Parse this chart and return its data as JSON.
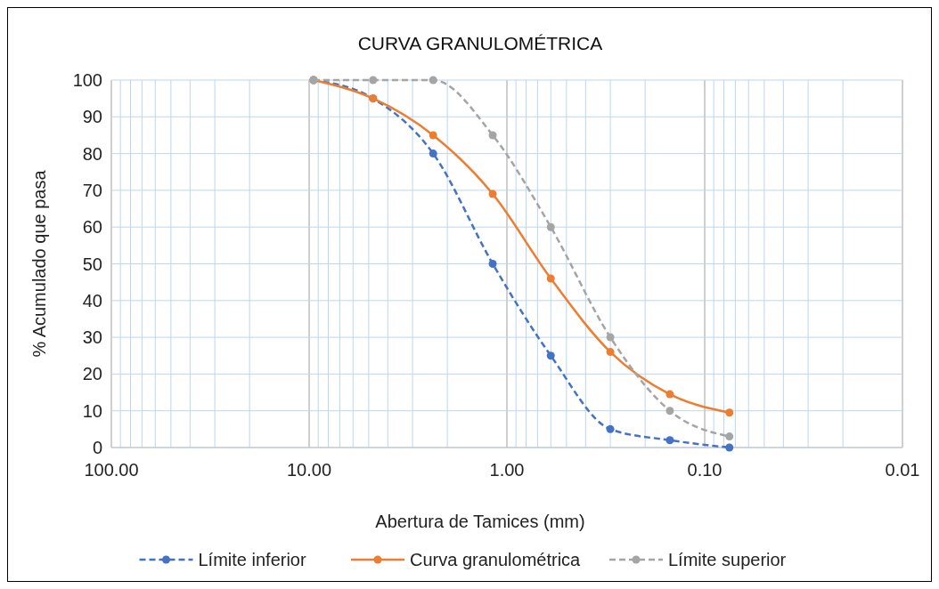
{
  "chart_data": {
    "type": "line",
    "title": "CURVA GRANULOMÉTRICA",
    "xlabel": "Abertura de Tamices (mm)",
    "ylabel": "% Acumulado que pasa",
    "log": "x",
    "xlim": [
      100,
      0.01
    ],
    "ylim": [
      0,
      100
    ],
    "xticks": [
      {
        "value": 100,
        "label": "100.00"
      },
      {
        "value": 90,
        "label": null
      },
      {
        "value": 80,
        "label": null
      },
      {
        "value": 70,
        "label": null
      },
      {
        "value": 60,
        "label": null
      },
      {
        "value": 50,
        "label": null
      },
      {
        "value": 40,
        "label": null
      },
      {
        "value": 30,
        "label": null
      },
      {
        "value": 20,
        "label": null
      },
      {
        "value": 10,
        "label": "10.00"
      },
      {
        "value": 9,
        "label": null
      },
      {
        "value": 8,
        "label": null
      },
      {
        "value": 7,
        "label": null
      },
      {
        "value": 6,
        "label": null
      },
      {
        "value": 5,
        "label": null
      },
      {
        "value": 4,
        "label": null
      },
      {
        "value": 3,
        "label": null
      },
      {
        "value": 2,
        "label": null
      },
      {
        "value": 1,
        "label": "1.00"
      },
      {
        "value": 0.9,
        "label": null
      },
      {
        "value": 0.8,
        "label": null
      },
      {
        "value": 0.7,
        "label": null
      },
      {
        "value": 0.6,
        "label": null
      },
      {
        "value": 0.5,
        "label": null
      },
      {
        "value": 0.4,
        "label": null
      },
      {
        "value": 0.3,
        "label": null
      },
      {
        "value": 0.2,
        "label": null
      },
      {
        "value": 0.1,
        "label": "0.10"
      },
      {
        "value": 0.09,
        "label": null
      },
      {
        "value": 0.08,
        "label": null
      },
      {
        "value": 0.07,
        "label": null
      },
      {
        "value": 0.06,
        "label": null
      },
      {
        "value": 0.05,
        "label": null
      },
      {
        "value": 0.04,
        "label": null
      },
      {
        "value": 0.03,
        "label": null
      },
      {
        "value": 0.02,
        "label": null
      },
      {
        "value": 0.01,
        "label": "0.01"
      }
    ],
    "yticks": [
      0,
      10,
      20,
      30,
      40,
      50,
      60,
      70,
      80,
      90,
      100
    ],
    "grid": true,
    "legend": "bottom",
    "marker": "circle",
    "x": [
      9.5,
      4.75,
      2.36,
      1.18,
      0.6,
      0.3,
      0.15,
      0.075
    ],
    "series": [
      {
        "name": "Límite inferior",
        "color": "#4472c4",
        "line_style": "dashed",
        "values": [
          100,
          95,
          80,
          50,
          25,
          5,
          2,
          0
        ]
      },
      {
        "name": "Curva granulométrica",
        "color": "#ed7d31",
        "line_style": "solid",
        "values": [
          100,
          95,
          85,
          69,
          46,
          26,
          14.5,
          9.5
        ]
      },
      {
        "name": "Límite superior",
        "color": "#a5a5a5",
        "line_style": "dashed",
        "values": [
          100,
          100,
          100,
          85,
          60,
          30,
          10,
          3
        ]
      }
    ]
  }
}
